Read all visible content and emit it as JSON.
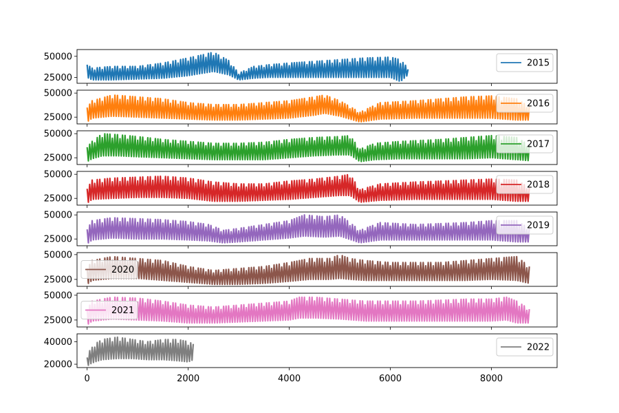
{
  "chart_data": {
    "type": "line",
    "title": "",
    "xlabel": "",
    "ylabel": "",
    "xlim": [
      -200,
      9300
    ],
    "x_ticks": [
      0,
      2000,
      4000,
      6000,
      8000
    ],
    "x_tick_labels": [
      "0",
      "2000",
      "4000",
      "6000",
      "8000"
    ],
    "legend_placement": "upper right (2020 and 2021: center left)",
    "note": "Hourly series, one subplot per year, sharing the x axis. Values listed as envelope points (approximate upper and lower values of the densely oscillating signal).",
    "subplots": [
      {
        "name": "2015",
        "color": "#1f77b4",
        "legend": "upper right",
        "ylim": [
          18000,
          58000
        ],
        "y_ticks": [
          25000,
          50000
        ],
        "x_end": 6360,
        "envelope": {
          "x": [
            0,
            100,
            500,
            1000,
            1500,
            2000,
            2300,
            2500,
            2800,
            3000,
            3300,
            3600,
            4000,
            4500,
            5000,
            5500,
            6000,
            6200,
            6350
          ],
          "upper": [
            40000,
            36000,
            38000,
            38000,
            42000,
            48000,
            52000,
            55000,
            45000,
            30000,
            38000,
            40000,
            42000,
            44000,
            46000,
            48000,
            49000,
            46000,
            36000
          ],
          "lower": [
            25000,
            22000,
            22000,
            23000,
            24000,
            27000,
            30000,
            32000,
            28000,
            22000,
            24000,
            25000,
            25000,
            25000,
            25000,
            25000,
            25000,
            20000,
            28000
          ]
        }
      },
      {
        "name": "2016",
        "color": "#ff7f0e",
        "legend": "upper right",
        "ylim": [
          18000,
          53000
        ],
        "y_ticks": [
          25000,
          50000
        ],
        "x_end": 8760,
        "envelope": {
          "x": [
            0,
            100,
            500,
            1000,
            1500,
            2000,
            2500,
            3000,
            3500,
            4000,
            4500,
            4700,
            5000,
            5400,
            5800,
            6500,
            7000,
            7500,
            8000,
            8500,
            8750
          ],
          "upper": [
            35000,
            42000,
            48000,
            46000,
            44000,
            40000,
            38000,
            38000,
            40000,
            42000,
            46000,
            48000,
            42000,
            30000,
            40000,
            42000,
            44000,
            46000,
            47000,
            44000,
            36000
          ],
          "lower": [
            20000,
            24000,
            26000,
            25000,
            24000,
            23000,
            22000,
            22000,
            23000,
            24000,
            27000,
            29000,
            26000,
            20000,
            23000,
            24000,
            24000,
            24000,
            24000,
            22000,
            22000
          ]
        }
      },
      {
        "name": "2017",
        "color": "#2ca02c",
        "legend": "upper right",
        "ylim": [
          18000,
          53000
        ],
        "y_ticks": [
          25000,
          50000
        ],
        "x_end": 8760,
        "envelope": {
          "x": [
            0,
            100,
            300,
            600,
            1000,
            1500,
            2000,
            2500,
            3000,
            3500,
            4000,
            4500,
            5000,
            5200,
            5400,
            5700,
            6200,
            7000,
            7500,
            8000,
            8500,
            8750
          ],
          "upper": [
            36000,
            42000,
            50000,
            49000,
            47000,
            44000,
            42000,
            40000,
            40000,
            41000,
            44000,
            46000,
            47000,
            48000,
            34000,
            40000,
            42000,
            44000,
            46000,
            48000,
            46000,
            38000
          ],
          "lower": [
            21000,
            24000,
            27000,
            27000,
            26000,
            25000,
            24000,
            23000,
            23000,
            23000,
            25000,
            27000,
            28000,
            28000,
            21000,
            23000,
            24000,
            24000,
            24000,
            25000,
            23000,
            22000
          ]
        }
      },
      {
        "name": "2018",
        "color": "#d62728",
        "legend": "upper right",
        "ylim": [
          18000,
          53000
        ],
        "y_ticks": [
          25000,
          50000
        ],
        "x_end": 8760,
        "envelope": {
          "x": [
            0,
            100,
            500,
            1000,
            1500,
            2000,
            2500,
            3000,
            3500,
            4000,
            4500,
            5000,
            5200,
            5400,
            5800,
            6500,
            7000,
            7500,
            8000,
            8500,
            8750
          ],
          "upper": [
            35000,
            44000,
            46000,
            47000,
            48000,
            46000,
            42000,
            40000,
            40000,
            43000,
            45000,
            48000,
            50000,
            34000,
            40000,
            42000,
            43000,
            44000,
            45000,
            44000,
            36000
          ],
          "lower": [
            20000,
            24000,
            25000,
            26000,
            26000,
            25000,
            22000,
            22000,
            23000,
            24000,
            26000,
            28000,
            28000,
            21000,
            23000,
            24000,
            24000,
            24000,
            24000,
            22000,
            22000
          ]
        }
      },
      {
        "name": "2019",
        "color": "#9467bd",
        "legend": "upper right",
        "ylim": [
          18000,
          53000
        ],
        "y_ticks": [
          25000,
          50000
        ],
        "x_end": 8760,
        "envelope": {
          "x": [
            0,
            100,
            500,
            1000,
            1500,
            2000,
            2400,
            2700,
            3000,
            3500,
            4000,
            4300,
            4700,
            5000,
            5400,
            5800,
            6500,
            7000,
            7500,
            8000,
            8500,
            8750
          ],
          "upper": [
            35000,
            44000,
            47000,
            46000,
            45000,
            43000,
            40000,
            34000,
            36000,
            40000,
            44000,
            50000,
            48000,
            50000,
            34000,
            42000,
            40000,
            41000,
            42000,
            44000,
            44000,
            36000
          ],
          "lower": [
            20000,
            24000,
            26000,
            25000,
            25000,
            24000,
            23000,
            21000,
            22000,
            24000,
            26000,
            28000,
            27000,
            28000,
            21000,
            24000,
            24000,
            24000,
            24000,
            24000,
            22000,
            22000
          ]
        }
      },
      {
        "name": "2020",
        "color": "#8c564b",
        "legend": "center left",
        "ylim": [
          18000,
          52000
        ],
        "y_ticks": [
          25000,
          50000
        ],
        "x_end": 8760,
        "envelope": {
          "x": [
            0,
            100,
            500,
            1000,
            1500,
            2000,
            2500,
            3000,
            3500,
            4000,
            4400,
            4800,
            5000,
            5200,
            5500,
            6000,
            6500,
            7000,
            7500,
            8000,
            8500,
            8750
          ],
          "upper": [
            36000,
            44000,
            48000,
            46000,
            44000,
            38000,
            34000,
            36000,
            38000,
            42000,
            46000,
            46000,
            50000,
            46000,
            44000,
            42000,
            42000,
            42000,
            44000,
            46000,
            48000,
            38000
          ],
          "lower": [
            20000,
            24000,
            26000,
            26000,
            24000,
            22000,
            20000,
            20000,
            21000,
            23000,
            25000,
            25000,
            26000,
            25000,
            24000,
            24000,
            24000,
            24000,
            24000,
            25000,
            24000,
            21000
          ]
        }
      },
      {
        "name": "2021",
        "color": "#e377c2",
        "legend": "center left",
        "ylim": [
          18000,
          52000
        ],
        "y_ticks": [
          25000,
          50000
        ],
        "x_end": 8760,
        "envelope": {
          "x": [
            0,
            100,
            500,
            1000,
            1500,
            2000,
            2500,
            3000,
            3500,
            4000,
            4200,
            4500,
            5000,
            5500,
            6000,
            6500,
            7000,
            7500,
            8000,
            8300,
            8500,
            8750
          ],
          "upper": [
            36000,
            44000,
            48000,
            47000,
            44000,
            40000,
            38000,
            40000,
            42000,
            44000,
            48000,
            48000,
            46000,
            44000,
            44000,
            44000,
            45000,
            46000,
            46000,
            48000,
            44000,
            36000
          ],
          "lower": [
            20000,
            24000,
            26000,
            25000,
            24000,
            22000,
            22000,
            23000,
            24000,
            25000,
            27000,
            27000,
            26000,
            24000,
            24000,
            24000,
            24000,
            24000,
            24000,
            25000,
            22000,
            22000
          ]
        }
      },
      {
        "name": "2022",
        "color": "#7f7f7f",
        "legend": "upper right",
        "ylim": [
          17000,
          47000
        ],
        "y_ticks": [
          20000,
          40000
        ],
        "x_end": 2100,
        "envelope": {
          "x": [
            0,
            50,
            150,
            300,
            600,
            900,
            1200,
            1500,
            1800,
            2000,
            2100
          ],
          "upper": [
            26000,
            32000,
            38000,
            42000,
            44000,
            42000,
            40000,
            42000,
            42000,
            40000,
            38000
          ],
          "lower": [
            18000,
            20000,
            22000,
            24000,
            25000,
            25000,
            24000,
            24000,
            23000,
            22000,
            24000
          ]
        }
      }
    ]
  }
}
